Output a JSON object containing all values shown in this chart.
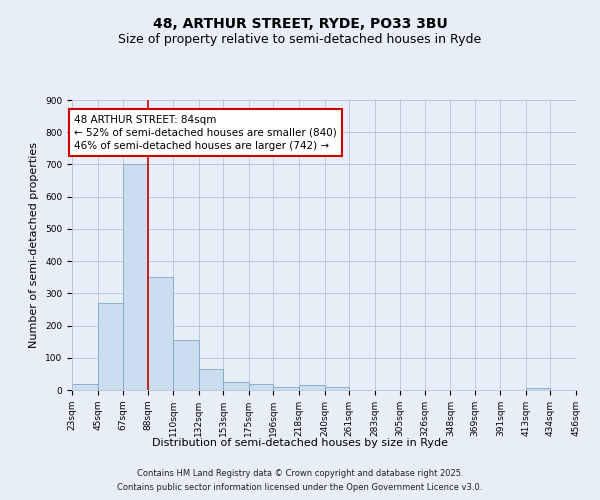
{
  "title": "48, ARTHUR STREET, RYDE, PO33 3BU",
  "subtitle": "Size of property relative to semi-detached houses in Ryde",
  "xlabel": "Distribution of semi-detached houses by size in Ryde",
  "ylabel": "Number of semi-detached properties",
  "bar_values": [
    20,
    270,
    700,
    350,
    155,
    65,
    25,
    20,
    10,
    15,
    8,
    0,
    0,
    0,
    0,
    0,
    0,
    0,
    5,
    0
  ],
  "bin_edges": [
    23,
    45,
    67,
    88,
    110,
    132,
    153,
    175,
    196,
    218,
    240,
    261,
    283,
    305,
    326,
    348,
    369,
    391,
    413,
    434,
    456
  ],
  "tick_labels": [
    "23sqm",
    "45sqm",
    "67sqm",
    "88sqm",
    "110sqm",
    "132sqm",
    "153sqm",
    "175sqm",
    "196sqm",
    "218sqm",
    "240sqm",
    "261sqm",
    "283sqm",
    "305sqm",
    "326sqm",
    "348sqm",
    "369sqm",
    "391sqm",
    "413sqm",
    "434sqm",
    "456sqm"
  ],
  "bar_color": "#ccddef",
  "bar_edge_color": "#7aaac8",
  "vline_x": 88,
  "vline_color": "#cc0000",
  "annotation_title": "48 ARTHUR STREET: 84sqm",
  "annotation_line1": "← 52% of semi-detached houses are smaller (840)",
  "annotation_line2": "46% of semi-detached houses are larger (742) →",
  "annotation_box_facecolor": "white",
  "annotation_box_edgecolor": "#cc0000",
  "ylim": [
    0,
    900
  ],
  "yticks": [
    0,
    100,
    200,
    300,
    400,
    500,
    600,
    700,
    800,
    900
  ],
  "footnote1": "Contains HM Land Registry data © Crown copyright and database right 2025.",
  "footnote2": "Contains public sector information licensed under the Open Government Licence v3.0.",
  "bg_color": "#e8eef8",
  "grid_color": "#b8c4d8",
  "title_fontsize": 10,
  "subtitle_fontsize": 9,
  "axis_label_fontsize": 8,
  "tick_fontsize": 6.5,
  "annotation_fontsize": 7.5,
  "footnote_fontsize": 6
}
